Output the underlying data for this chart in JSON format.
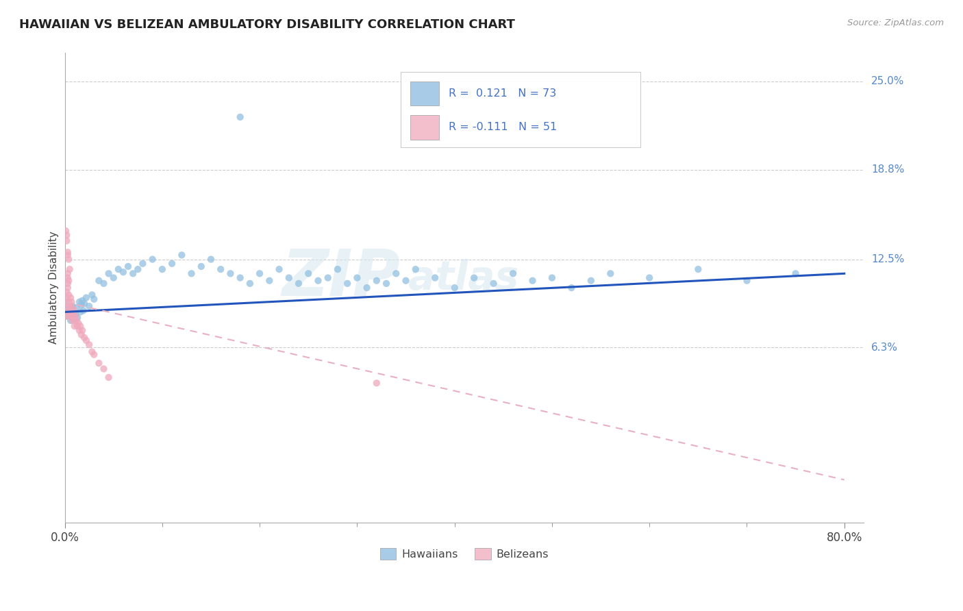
{
  "title": "HAWAIIAN VS BELIZEAN AMBULATORY DISABILITY CORRELATION CHART",
  "source": "Source: ZipAtlas.com",
  "ylabel": "Ambulatory Disability",
  "ytick_labels": [
    "6.3%",
    "12.5%",
    "18.8%",
    "25.0%"
  ],
  "ytick_values": [
    0.063,
    0.125,
    0.188,
    0.25
  ],
  "xtick_labels": [
    "0.0%",
    "80.0%"
  ],
  "xlim": [
    0.0,
    0.82
  ],
  "ylim": [
    -0.06,
    0.27
  ],
  "hawaiian_color": "#92c0e0",
  "belizean_color": "#f0a8bc",
  "trend_hawaiian_color": "#2255bb",
  "trend_belizean_color": "#e8b0c0",
  "legend_hawaiian_color": "#a8cce8",
  "legend_belizean_color": "#f4bfcc",
  "r_hawaiian": 0.121,
  "n_hawaiian": 73,
  "r_belizean": -0.111,
  "n_belizean": 51,
  "hawaiian_x": [
    0.001,
    0.003,
    0.005,
    0.006,
    0.008,
    0.009,
    0.01,
    0.011,
    0.012,
    0.013,
    0.015,
    0.016,
    0.017,
    0.018,
    0.019,
    0.02,
    0.022,
    0.025,
    0.028,
    0.03,
    0.035,
    0.04,
    0.045,
    0.05,
    0.055,
    0.06,
    0.065,
    0.07,
    0.075,
    0.08,
    0.09,
    0.1,
    0.11,
    0.12,
    0.13,
    0.14,
    0.15,
    0.16,
    0.17,
    0.18,
    0.19,
    0.2,
    0.21,
    0.22,
    0.23,
    0.24,
    0.25,
    0.26,
    0.27,
    0.28,
    0.29,
    0.3,
    0.31,
    0.32,
    0.33,
    0.34,
    0.35,
    0.36,
    0.38,
    0.4,
    0.42,
    0.44,
    0.46,
    0.48,
    0.5,
    0.52,
    0.54,
    0.56,
    0.6,
    0.65,
    0.7,
    0.75,
    0.18
  ],
  "hawaiian_y": [
    0.085,
    0.09,
    0.088,
    0.082,
    0.092,
    0.086,
    0.083,
    0.087,
    0.091,
    0.084,
    0.095,
    0.088,
    0.093,
    0.096,
    0.089,
    0.094,
    0.098,
    0.092,
    0.1,
    0.097,
    0.11,
    0.108,
    0.115,
    0.112,
    0.118,
    0.116,
    0.12,
    0.115,
    0.118,
    0.122,
    0.125,
    0.118,
    0.122,
    0.128,
    0.115,
    0.12,
    0.125,
    0.118,
    0.115,
    0.112,
    0.108,
    0.115,
    0.11,
    0.118,
    0.112,
    0.108,
    0.115,
    0.11,
    0.112,
    0.118,
    0.108,
    0.112,
    0.105,
    0.11,
    0.108,
    0.115,
    0.11,
    0.118,
    0.112,
    0.105,
    0.112,
    0.108,
    0.115,
    0.11,
    0.112,
    0.105,
    0.11,
    0.115,
    0.112,
    0.118,
    0.11,
    0.115,
    0.225
  ],
  "belizean_x": [
    0.0,
    0.001,
    0.001,
    0.002,
    0.002,
    0.002,
    0.003,
    0.003,
    0.003,
    0.003,
    0.004,
    0.004,
    0.004,
    0.005,
    0.005,
    0.005,
    0.006,
    0.006,
    0.006,
    0.007,
    0.007,
    0.008,
    0.008,
    0.009,
    0.009,
    0.01,
    0.01,
    0.011,
    0.012,
    0.013,
    0.014,
    0.015,
    0.016,
    0.017,
    0.018,
    0.02,
    0.022,
    0.025,
    0.028,
    0.03,
    0.035,
    0.04,
    0.045,
    0.002,
    0.003,
    0.004,
    0.005,
    0.001,
    0.002,
    0.003,
    0.32
  ],
  "belizean_y": [
    0.092,
    0.088,
    0.095,
    0.085,
    0.098,
    0.102,
    0.108,
    0.112,
    0.115,
    0.105,
    0.095,
    0.1,
    0.11,
    0.088,
    0.092,
    0.085,
    0.098,
    0.088,
    0.092,
    0.085,
    0.095,
    0.088,
    0.082,
    0.09,
    0.085,
    0.082,
    0.078,
    0.085,
    0.082,
    0.078,
    0.08,
    0.075,
    0.078,
    0.072,
    0.075,
    0.07,
    0.068,
    0.065,
    0.06,
    0.058,
    0.052,
    0.048,
    0.042,
    0.138,
    0.13,
    0.125,
    0.118,
    0.145,
    0.142,
    0.128,
    0.038
  ],
  "trend_h_x0": 0.0,
  "trend_h_x1": 0.8,
  "trend_h_y0": 0.088,
  "trend_h_y1": 0.115,
  "trend_b_x0": 0.0,
  "trend_b_x1": 0.8,
  "trend_b_y0": 0.095,
  "trend_b_y1": -0.03
}
